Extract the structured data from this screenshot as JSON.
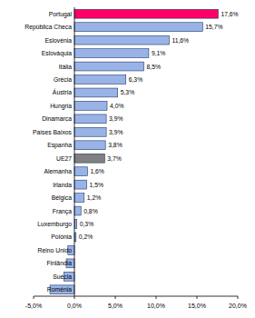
{
  "chart_data": {
    "type": "bar",
    "orientation": "horizontal",
    "categories": [
      "Portugal",
      "República Checa",
      "Eslovénia",
      "Eslováquia",
      "Itália",
      "Grécia",
      "Áustria",
      "Hungria",
      "Dinamarca",
      "Países Baixos",
      "Espanha",
      "UE27",
      "Alemanha",
      "Irlanda",
      "Bélgica",
      "França",
      "Luxemburgo",
      "Polónia",
      "Reino Unido",
      "Finlândia",
      "Suécia",
      "Roménia"
    ],
    "values": [
      17.6,
      15.7,
      11.6,
      9.1,
      8.5,
      6.3,
      5.3,
      4.0,
      3.9,
      3.9,
      3.8,
      3.7,
      1.6,
      1.5,
      1.2,
      0.8,
      0.3,
      0.2,
      -0.8,
      -1.0,
      -1.3,
      -3.0
    ],
    "data_labels": true,
    "value_labels": [
      "17,6%",
      "15,7%",
      "11,6%",
      "9,1%",
      "8,5%",
      "6,3%",
      "5,3%",
      "4,0%",
      "3,9%",
      "3,9%",
      "3,8%",
      "3,7%",
      "1,6%",
      "1,5%",
      "1,2%",
      "0,8%",
      "0,3%",
      "0,2%",
      null,
      null,
      null,
      null
    ],
    "colors": [
      "#ff0066",
      "#99b3e6",
      "#99b3e6",
      "#99b3e6",
      "#99b3e6",
      "#99b3e6",
      "#99b3e6",
      "#99b3e6",
      "#99b3e6",
      "#99b3e6",
      "#99b3e6",
      "#808080",
      "#99b3e6",
      "#99b3e6",
      "#99b3e6",
      "#99b3e6",
      "#99b3e6",
      "#99b3e6",
      "#99b3e6",
      "#99b3e6",
      "#99b3e6",
      "#99b3e6"
    ],
    "xlim": [
      -5,
      20
    ],
    "xticks": [
      {
        "value": -5,
        "label": "-5,0%"
      },
      {
        "value": 0,
        "label": "0,0%"
      },
      {
        "value": 5,
        "label": "5,0%"
      },
      {
        "value": 10,
        "label": "10,0%"
      },
      {
        "value": 15,
        "label": "15,0%"
      },
      {
        "value": 20,
        "label": "20,0%"
      }
    ],
    "grid": false
  }
}
